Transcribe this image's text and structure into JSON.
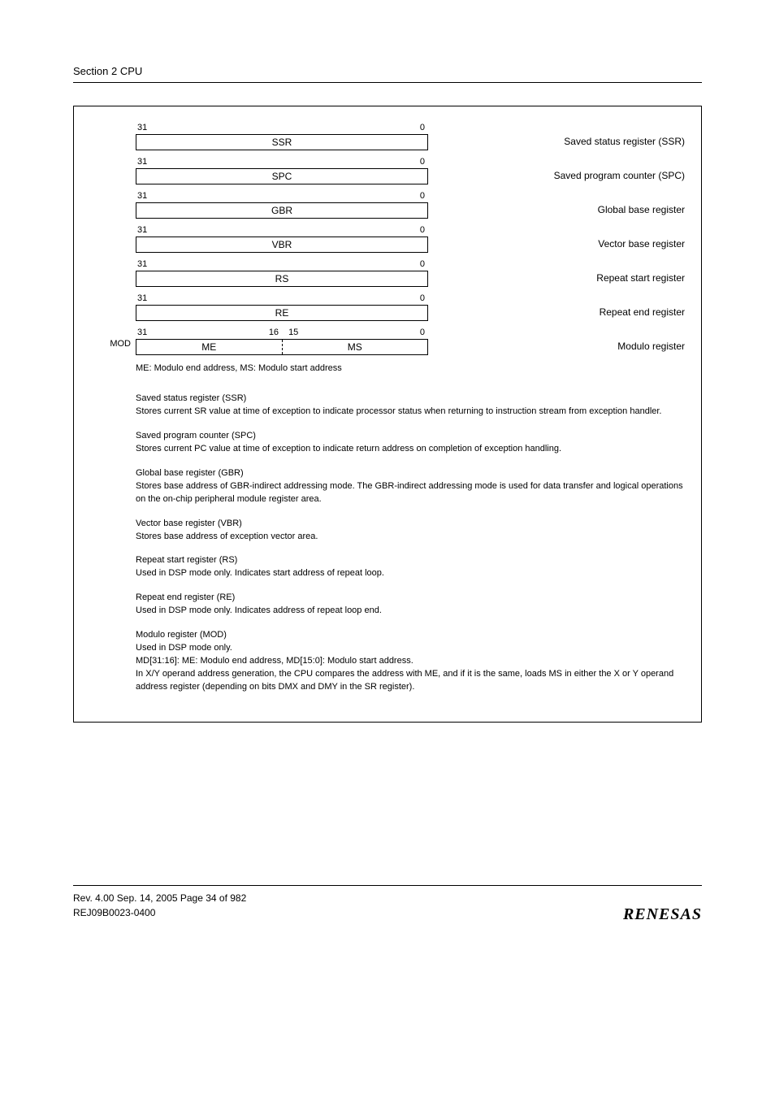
{
  "header": {
    "section": "Section 2   CPU"
  },
  "registers": [
    {
      "left": "",
      "bits_l": "31",
      "bits_r": "0",
      "name": "SSR",
      "desc": "Saved status register (SSR)"
    },
    {
      "left": "",
      "bits_l": "31",
      "bits_r": "0",
      "name": "SPC",
      "desc": "Saved program counter (SPC)"
    },
    {
      "left": "",
      "bits_l": "31",
      "bits_r": "0",
      "name": "GBR",
      "desc": "Global base register"
    },
    {
      "left": "",
      "bits_l": "31",
      "bits_r": "0",
      "name": "VBR",
      "desc": "Vector base register"
    },
    {
      "left": "",
      "bits_l": "31",
      "bits_r": "0",
      "name": "RS",
      "desc": "Repeat start register"
    },
    {
      "left": "",
      "bits_l": "31",
      "bits_r": "0",
      "name": "RE",
      "desc": "Repeat end register"
    }
  ],
  "mod_register": {
    "left": "MOD",
    "bits_l": "31",
    "bits_midl": "16",
    "bits_midr": "15",
    "bits_r": "0",
    "half_l": "ME",
    "half_r": "MS",
    "desc": "Modulo register"
  },
  "note": "ME: Modulo end address,  MS: Modulo start address",
  "descriptions": [
    {
      "title": "Saved status register (SSR)",
      "body": "Stores current SR value at time of exception to indicate processor status when returning to instruction stream from exception handler."
    },
    {
      "title": "Saved program counter (SPC)",
      "body": "Stores current PC value at time of exception to indicate return address on completion of exception handling."
    },
    {
      "title": "Global base register (GBR)",
      "body": "Stores base address of GBR-indirect addressing mode. The GBR-indirect addressing mode is used for data transfer and logical operations on the on-chip peripheral module register area."
    },
    {
      "title": "Vector base register (VBR)",
      "body": "Stores base address of exception vector area."
    },
    {
      "title": "Repeat start register (RS)",
      "body": "Used in DSP mode only. Indicates start address of repeat loop."
    },
    {
      "title": "Repeat end register (RE)",
      "body": "Used in DSP mode only. Indicates address of repeat loop end."
    },
    {
      "title": "Modulo register (MOD)",
      "body": "Used in DSP mode only.\nMD[31:16]: ME: Modulo end address, MD[15:0]: Modulo start address.\nIn X/Y operand address generation, the CPU compares the address with ME, and if it is the same, loads MS in either the X or Y operand address register (depending on bits DMX and DMY in the SR register)."
    }
  ],
  "footer": {
    "line1": "Rev. 4.00  Sep. 14, 2005  Page 34 of 982",
    "line2": "REJ09B0023-0400",
    "logo": "RENESAS"
  }
}
